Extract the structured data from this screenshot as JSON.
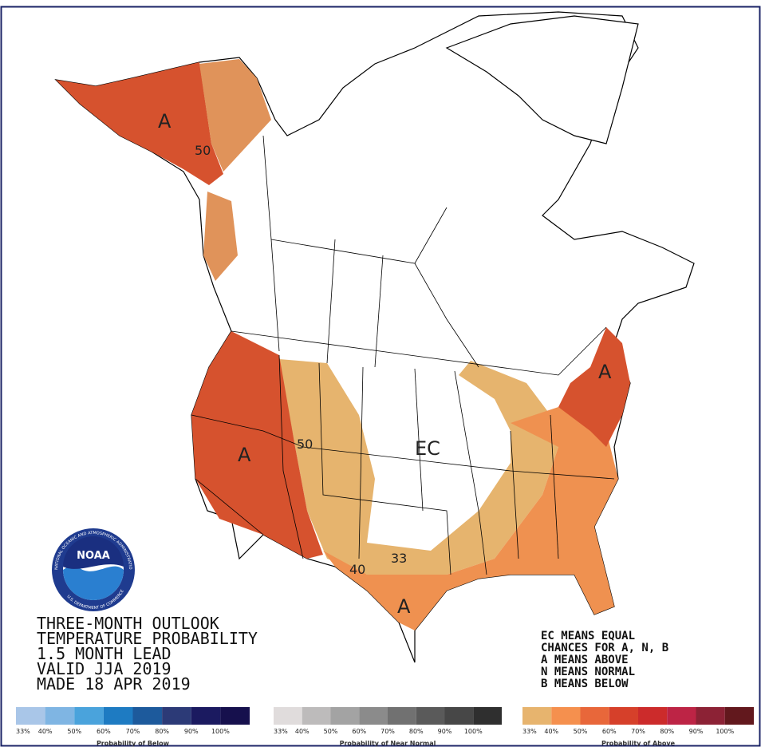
{
  "title_lines": [
    "THREE-MONTH OUTLOOK",
    "TEMPERATURE PROBABILITY",
    "1.5 MONTH LEAD",
    "VALID JJA 2019",
    "MADE 18 APR 2019"
  ],
  "note_lines": [
    "EC MEANS EQUAL",
    "CHANCES FOR A, N, B",
    "A MEANS ABOVE",
    "N MEANS NORMAL",
    "B MEANS BELOW"
  ],
  "map_labels": [
    "A",
    "50",
    "A",
    "50",
    "EC",
    "40",
    "33",
    "A",
    "A"
  ],
  "logo": {
    "name": "NOAA",
    "ring_top": "NATIONAL OCEANIC AND ATMOSPHERIC ADMINISTRATION",
    "ring_bottom": "U.S. DEPARTMENT OF COMMERCE"
  },
  "legends": [
    {
      "caption": "Probability of Below",
      "labels": [
        "33%",
        "40%",
        "50%",
        "60%",
        "70%",
        "80%",
        "90%",
        "100%"
      ],
      "colors": [
        "#a9c6e8",
        "#7fb5e3",
        "#4aa3dc",
        "#1e7bc2",
        "#1d5a9c",
        "#2c3a77",
        "#1b1a60",
        "#16104d"
      ]
    },
    {
      "caption": "Probability of Near Normal",
      "labels": [
        "33%",
        "40%",
        "50%",
        "60%",
        "70%",
        "80%",
        "90%",
        "100%"
      ],
      "colors": [
        "#e0dcdc",
        "#bdbbbb",
        "#a3a3a3",
        "#8b8b8b",
        "#717171",
        "#5a5a5a",
        "#474747",
        "#2f2f2f"
      ]
    },
    {
      "caption": "Probability of Above",
      "labels": [
        "33%",
        "40%",
        "50%",
        "60%",
        "70%",
        "80%",
        "90%",
        "100%"
      ],
      "colors": [
        "#e7b46e",
        "#f5904e",
        "#e8673a",
        "#d6402a",
        "#cc2b2b",
        "#bd2445",
        "#8c2235",
        "#62181d"
      ]
    }
  ]
}
